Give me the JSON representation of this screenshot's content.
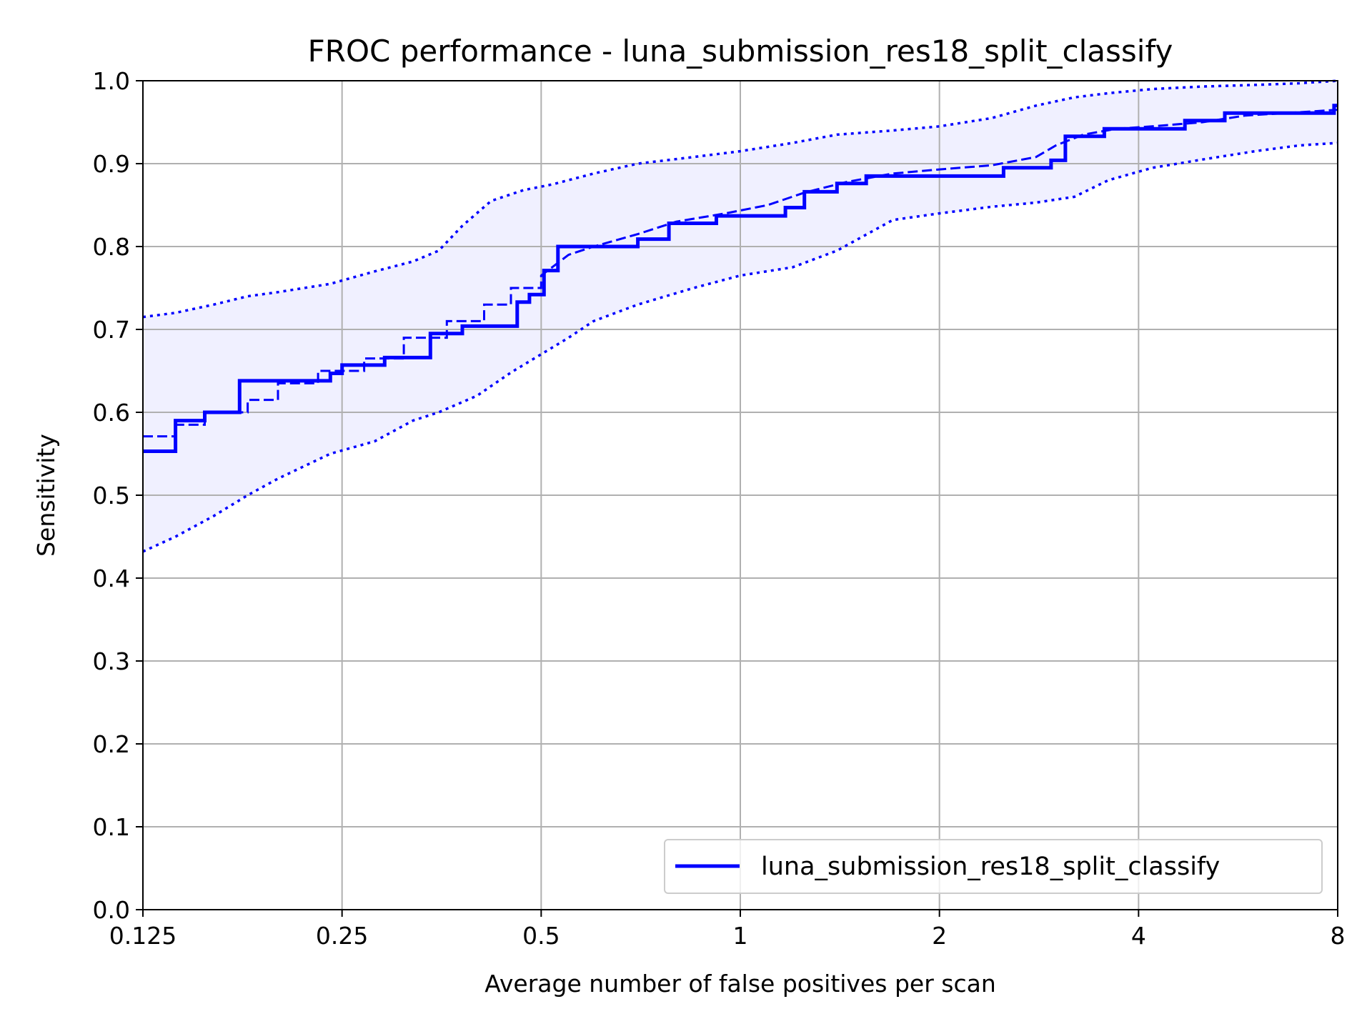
{
  "chart_data": {
    "type": "line",
    "title": "FROC performance - luna_submission_res18_split_classify",
    "xlabel": "Average number of false positives per scan",
    "ylabel": "Sensitivity",
    "x_scale": "log2",
    "xlim": [
      0.125,
      8
    ],
    "ylim": [
      0,
      1
    ],
    "x_ticks": [
      {
        "value": 0.125,
        "label": "0.125"
      },
      {
        "value": 0.25,
        "label": "0.25"
      },
      {
        "value": 0.5,
        "label": "0.5"
      },
      {
        "value": 1,
        "label": "1"
      },
      {
        "value": 2,
        "label": "2"
      },
      {
        "value": 4,
        "label": "4"
      },
      {
        "value": 8,
        "label": "8"
      }
    ],
    "y_ticks": [
      {
        "value": 0.0,
        "label": "0.0"
      },
      {
        "value": 0.1,
        "label": "0.1"
      },
      {
        "value": 0.2,
        "label": "0.2"
      },
      {
        "value": 0.3,
        "label": "0.3"
      },
      {
        "value": 0.4,
        "label": "0.4"
      },
      {
        "value": 0.5,
        "label": "0.5"
      },
      {
        "value": 0.6,
        "label": "0.6"
      },
      {
        "value": 0.7,
        "label": "0.7"
      },
      {
        "value": 0.8,
        "label": "0.8"
      },
      {
        "value": 0.9,
        "label": "0.9"
      },
      {
        "value": 1.0,
        "label": "1.0"
      }
    ],
    "grid": true,
    "legend_position": "lower-right",
    "legend": [
      {
        "name": "luna_submission_res18_split_classify",
        "color": "#0000ff"
      }
    ],
    "series": [
      {
        "name": "luna_submission_res18_split_classify",
        "color": "#0000ff",
        "style": "solid",
        "x": [
          0.125,
          0.14,
          0.14,
          0.155,
          0.155,
          0.175,
          0.175,
          0.24,
          0.24,
          0.25,
          0.25,
          0.29,
          0.29,
          0.34,
          0.34,
          0.38,
          0.38,
          0.46,
          0.46,
          0.48,
          0.48,
          0.505,
          0.505,
          0.53,
          0.53,
          0.7,
          0.7,
          0.78,
          0.78,
          0.92,
          0.92,
          1.17,
          1.17,
          1.25,
          1.25,
          1.4,
          1.4,
          1.55,
          1.55,
          2.5,
          2.5,
          2.95,
          2.95,
          3.1,
          3.1,
          3.55,
          3.55,
          4.7,
          4.7,
          5.4,
          5.4,
          7.9,
          7.9,
          8.0
        ],
        "y": [
          0.553,
          0.553,
          0.59,
          0.59,
          0.6,
          0.6,
          0.638,
          0.638,
          0.647,
          0.647,
          0.657,
          0.657,
          0.666,
          0.666,
          0.695,
          0.695,
          0.704,
          0.704,
          0.733,
          0.733,
          0.742,
          0.742,
          0.771,
          0.771,
          0.8,
          0.8,
          0.809,
          0.809,
          0.828,
          0.828,
          0.837,
          0.837,
          0.847,
          0.847,
          0.866,
          0.866,
          0.876,
          0.876,
          0.885,
          0.885,
          0.895,
          0.895,
          0.904,
          0.904,
          0.933,
          0.933,
          0.942,
          0.942,
          0.952,
          0.952,
          0.961,
          0.961,
          0.97,
          0.97
        ]
      },
      {
        "name": "",
        "color": "#0000ff",
        "style": "dashed",
        "x": [
          0.125,
          0.14,
          0.14,
          0.155,
          0.155,
          0.18,
          0.18,
          0.2,
          0.2,
          0.23,
          0.23,
          0.27,
          0.27,
          0.31,
          0.31,
          0.36,
          0.36,
          0.41,
          0.41,
          0.45,
          0.45,
          0.5,
          0.5,
          0.55,
          0.6,
          0.7,
          0.8,
          0.95,
          1.1,
          1.25,
          1.45,
          1.7,
          2.0,
          2.4,
          2.8,
          3.0,
          3.3,
          3.7,
          4.2,
          5.0,
          5.8,
          7.0,
          8.0
        ],
        "y": [
          0.571,
          0.571,
          0.585,
          0.585,
          0.6,
          0.6,
          0.615,
          0.615,
          0.635,
          0.635,
          0.65,
          0.65,
          0.665,
          0.665,
          0.69,
          0.69,
          0.71,
          0.71,
          0.73,
          0.73,
          0.75,
          0.75,
          0.765,
          0.79,
          0.8,
          0.815,
          0.83,
          0.84,
          0.85,
          0.865,
          0.878,
          0.888,
          0.893,
          0.898,
          0.908,
          0.922,
          0.935,
          0.942,
          0.945,
          0.95,
          0.958,
          0.962,
          0.965
        ]
      },
      {
        "name": "",
        "color": "#0000ff",
        "style": "dotted",
        "x": [
          0.125,
          0.14,
          0.16,
          0.18,
          0.2,
          0.24,
          0.28,
          0.32,
          0.35,
          0.38,
          0.42,
          0.47,
          0.52,
          0.6,
          0.7,
          0.85,
          1.0,
          1.2,
          1.4,
          1.7,
          2.0,
          2.4,
          2.8,
          3.2,
          3.6,
          4.2,
          5.0,
          6.0,
          7.0,
          8.0
        ],
        "y": [
          0.715,
          0.72,
          0.73,
          0.74,
          0.745,
          0.755,
          0.77,
          0.782,
          0.795,
          0.825,
          0.855,
          0.868,
          0.875,
          0.888,
          0.9,
          0.908,
          0.915,
          0.925,
          0.935,
          0.94,
          0.945,
          0.955,
          0.97,
          0.98,
          0.985,
          0.99,
          0.993,
          0.995,
          0.997,
          1.0
        ]
      },
      {
        "name": "",
        "color": "#0000ff",
        "style": "dotted",
        "x": [
          0.125,
          0.14,
          0.16,
          0.18,
          0.2,
          0.24,
          0.28,
          0.32,
          0.35,
          0.4,
          0.45,
          0.5,
          0.55,
          0.6,
          0.7,
          0.85,
          1.0,
          1.2,
          1.4,
          1.7,
          2.0,
          2.4,
          2.8,
          3.2,
          3.6,
          4.2,
          5.0,
          6.0,
          7.0,
          8.0
        ],
        "y": [
          0.432,
          0.45,
          0.475,
          0.5,
          0.52,
          0.55,
          0.565,
          0.59,
          0.6,
          0.62,
          0.648,
          0.67,
          0.69,
          0.71,
          0.73,
          0.75,
          0.765,
          0.775,
          0.795,
          0.832,
          0.84,
          0.848,
          0.853,
          0.86,
          0.88,
          0.895,
          0.905,
          0.915,
          0.922,
          0.925
        ]
      }
    ]
  }
}
